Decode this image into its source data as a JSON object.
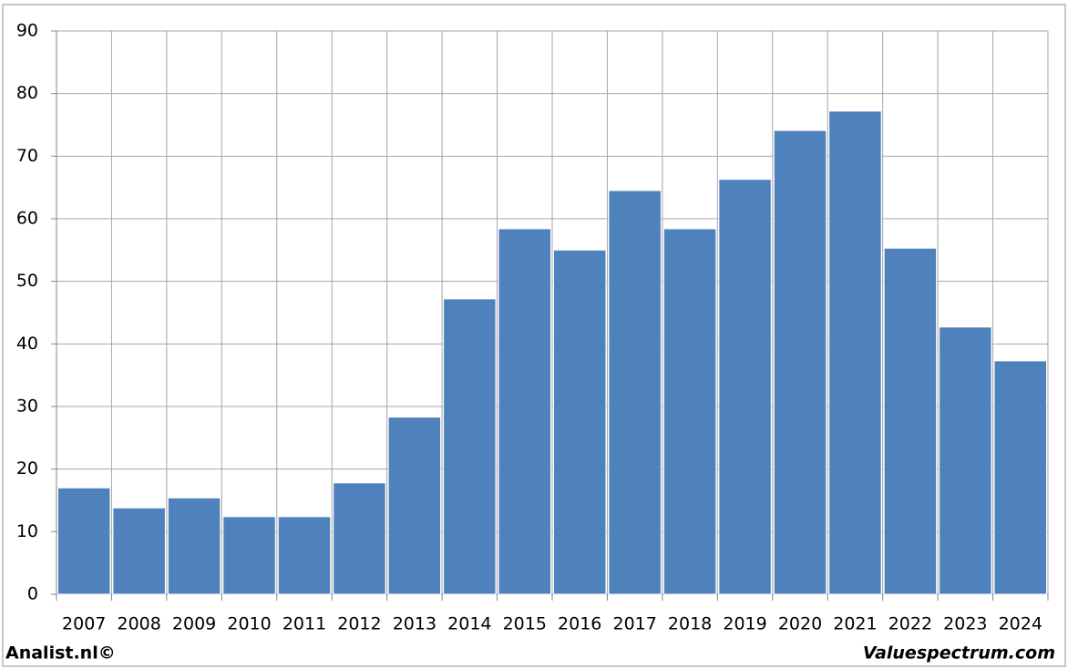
{
  "chart_data": {
    "type": "bar",
    "categories": [
      "2007",
      "2008",
      "2009",
      "2010",
      "2011",
      "2012",
      "2013",
      "2014",
      "2015",
      "2016",
      "2017",
      "2018",
      "2019",
      "2020",
      "2021",
      "2022",
      "2023",
      "2024"
    ],
    "values": [
      17.0,
      13.8,
      15.4,
      12.4,
      12.4,
      17.8,
      28.3,
      47.2,
      58.4,
      55.0,
      64.5,
      58.4,
      66.3,
      74.1,
      77.2,
      55.3,
      42.7,
      37.3
    ],
    "color": "#4f81bd",
    "ylim": [
      0,
      90
    ],
    "yticks": [
      0,
      10,
      20,
      30,
      40,
      50,
      60,
      70,
      80,
      90
    ],
    "grid": true,
    "annotations": [
      "Analist.nl©",
      "Valuespectrum.com"
    ]
  }
}
